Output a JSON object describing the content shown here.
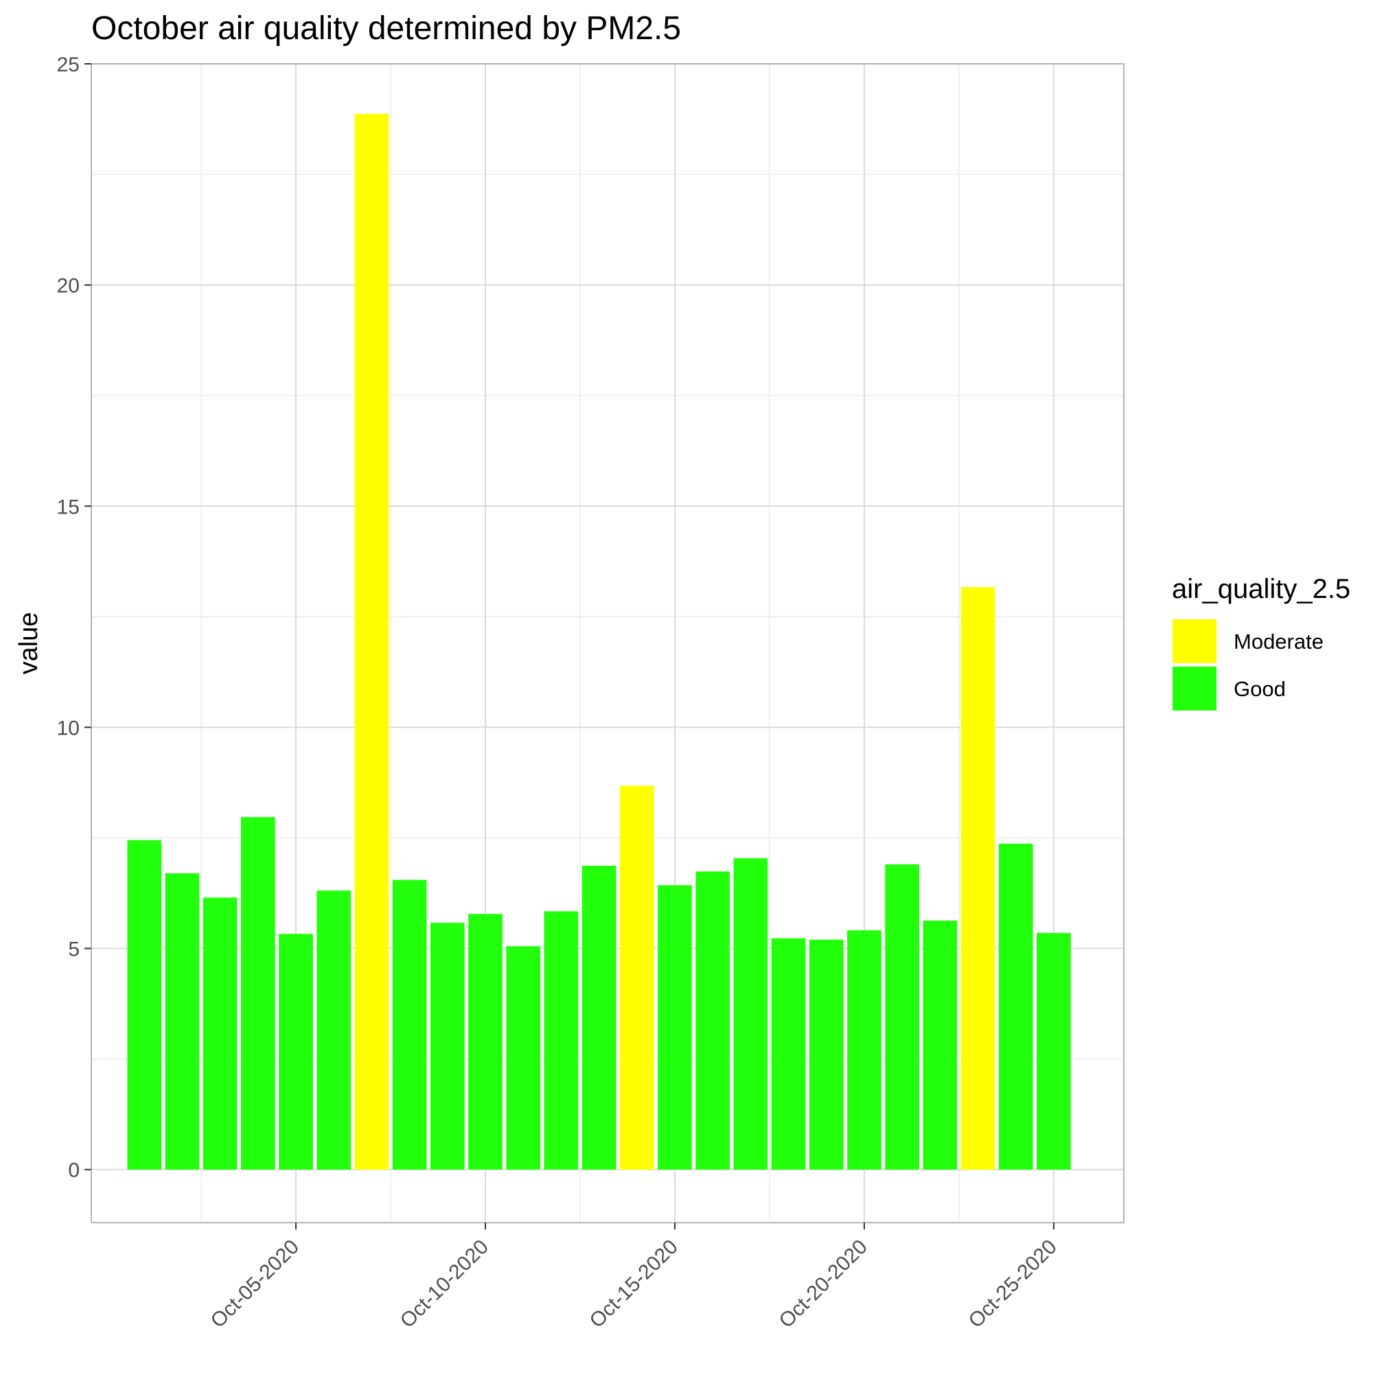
{
  "chart_data": {
    "type": "bar",
    "title": "October air quality determined by PM2.5",
    "xlabel": "",
    "ylabel": "value",
    "ylim": [
      -1.2,
      25
    ],
    "y_ticks": [
      0,
      5,
      10,
      15,
      20,
      25
    ],
    "x_tick_dates": [
      "2020-10-05",
      "2020-10-10",
      "2020-10-15",
      "2020-10-20",
      "2020-10-25"
    ],
    "x_tick_labels": [
      "Oct-05-2020",
      "Oct-10-2020",
      "Oct-15-2020",
      "Oct-20-2020",
      "Oct-25-2020"
    ],
    "grid": true,
    "legend": {
      "title": "air_quality_2.5",
      "position": "right",
      "items": [
        {
          "label": "Moderate",
          "color": "#FFFF00"
        },
        {
          "label": "Good",
          "color": "#22FF0A"
        }
      ]
    },
    "x": [
      "2020-10-01",
      "2020-10-02",
      "2020-10-03",
      "2020-10-04",
      "2020-10-05",
      "2020-10-06",
      "2020-10-07",
      "2020-10-08",
      "2020-10-09",
      "2020-10-10",
      "2020-10-11",
      "2020-10-12",
      "2020-10-13",
      "2020-10-14",
      "2020-10-15",
      "2020-10-16",
      "2020-10-17",
      "2020-10-18",
      "2020-10-19",
      "2020-10-20",
      "2020-10-21",
      "2020-10-22",
      "2020-10-23",
      "2020-10-24",
      "2020-10-25",
      "2020-10-26"
    ],
    "values": [
      7.45,
      6.7,
      6.15,
      7.97,
      5.33,
      6.31,
      23.87,
      6.55,
      5.58,
      5.78,
      5.05,
      5.84,
      6.87,
      8.68,
      6.43,
      6.74,
      7.04,
      5.23,
      5.2,
      5.41,
      6.9,
      5.63,
      13.17,
      7.37,
      5.35,
      0
    ],
    "categories": [
      "Good",
      "Good",
      "Good",
      "Good",
      "Good",
      "Good",
      "Moderate",
      "Good",
      "Good",
      "Good",
      "Good",
      "Good",
      "Good",
      "Moderate",
      "Good",
      "Good",
      "Good",
      "Good",
      "Good",
      "Good",
      "Good",
      "Good",
      "Moderate",
      "Good",
      "Good",
      "Good"
    ]
  }
}
